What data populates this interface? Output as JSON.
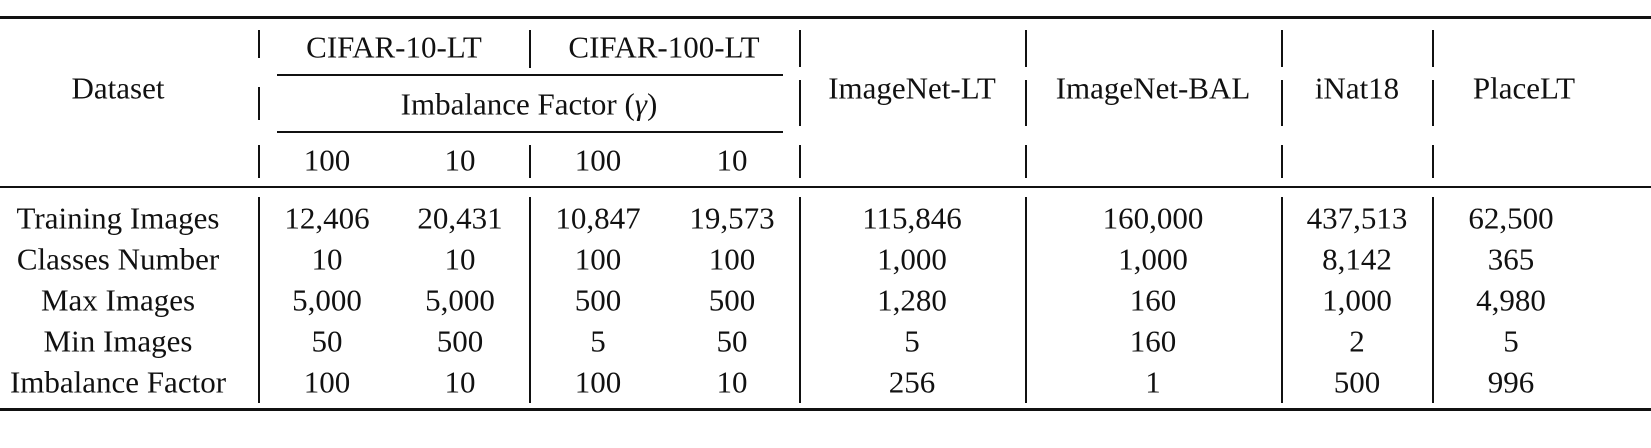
{
  "table": {
    "row_header_label": "Dataset",
    "group_headers": [
      "CIFAR-10-LT",
      "CIFAR-100-LT"
    ],
    "imbalance_label": "Imbalance Factor (",
    "gamma_symbol": "γ",
    "imbalance_close": ")",
    "cifar_sub_columns": [
      "100",
      "10",
      "100",
      "10"
    ],
    "other_columns": [
      "ImageNet-LT",
      "ImageNet-BAL",
      "iNat18",
      "PlaceLT"
    ],
    "rows": [
      {
        "label": "Training Images",
        "values": [
          "12,406",
          "20,431",
          "10,847",
          "19,573",
          "115,846",
          "160,000",
          "437,513",
          "62,500"
        ]
      },
      {
        "label": "Classes Number",
        "values": [
          "10",
          "10",
          "100",
          "100",
          "1,000",
          "1,000",
          "8,142",
          "365"
        ]
      },
      {
        "label": "Max Images",
        "values": [
          "5,000",
          "5,000",
          "500",
          "500",
          "1,280",
          "160",
          "1,000",
          "4,980"
        ]
      },
      {
        "label": "Min Images",
        "values": [
          "50",
          "500",
          "5",
          "50",
          "5",
          "160",
          "2",
          "5"
        ]
      },
      {
        "label": "Imbalance Factor",
        "values": [
          "100",
          "10",
          "100",
          "10",
          "256",
          "1",
          "500",
          "996"
        ]
      }
    ]
  }
}
